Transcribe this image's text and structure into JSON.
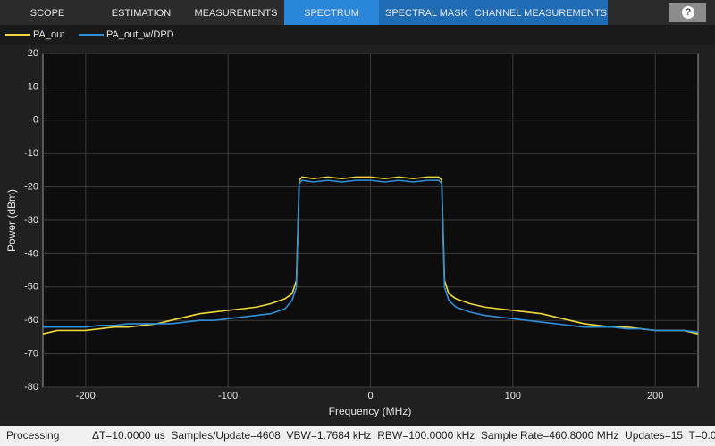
{
  "toolstrip": {
    "tabs": [
      "SCOPE",
      "ESTIMATION",
      "MEASUREMENTS",
      "SPECTRUM",
      "SPECTRAL MASK",
      "CHANNEL MEASUREMENTS"
    ],
    "help_button": "?"
  },
  "status_bar": {
    "state": "Processing",
    "info": "ΔT=10.0000 us  Samples/Update=4608  VBW=1.7684 kHz  RBW=100.0000 kHz  Sample Rate=460.8000 MHz  Updates=15  T=0.0"
  },
  "chart_data": {
    "type": "line",
    "x_label": "Frequency (MHz)",
    "y_label": "Power (dBm)",
    "x": [
      -230,
      -220,
      -210,
      -200,
      -190,
      -180,
      -170,
      -160,
      -150,
      -140,
      -130,
      -120,
      -110,
      -100,
      -90,
      -80,
      -70,
      -60,
      -55,
      -52,
      -50,
      -48,
      -40,
      -30,
      -20,
      -10,
      0,
      10,
      20,
      30,
      40,
      48,
      50,
      52,
      55,
      60,
      70,
      80,
      90,
      100,
      110,
      120,
      130,
      140,
      150,
      160,
      170,
      180,
      190,
      200,
      210,
      220,
      230
    ],
    "series": [
      {
        "name": "PA_out",
        "color": "#f0d83c",
        "values": [
          -64,
          -63,
          -63,
          -63,
          -62.5,
          -62,
          -62,
          -61.5,
          -61,
          -60,
          -59,
          -58,
          -57.5,
          -57,
          -56.5,
          -56,
          -55,
          -53.5,
          -52,
          -48,
          -18,
          -17,
          -17.5,
          -17,
          -17.5,
          -17,
          -17,
          -17.5,
          -17,
          -17.5,
          -17,
          -17,
          -18,
          -48,
          -52,
          -53.5,
          -55,
          -56,
          -56.5,
          -57,
          -57.5,
          -58,
          -59,
          -60,
          -61,
          -61.5,
          -62,
          -62,
          -62.5,
          -63,
          -63,
          -63,
          -64
        ]
      },
      {
        "name": "PA_out_w/DPD",
        "color": "#2f8fd8",
        "values": [
          -62,
          -62,
          -62,
          -62,
          -61.5,
          -61.5,
          -61,
          -61,
          -61,
          -61,
          -60.5,
          -60,
          -60,
          -59.5,
          -59,
          -58.5,
          -58,
          -56.5,
          -54,
          -50,
          -19,
          -18,
          -18.5,
          -18,
          -18.5,
          -18,
          -18,
          -18.5,
          -18,
          -18.5,
          -18,
          -18,
          -19,
          -50,
          -54,
          -56,
          -57.5,
          -58.5,
          -59,
          -59.5,
          -60,
          -60.5,
          -61,
          -61.5,
          -62,
          -62,
          -62,
          -62.5,
          -62.5,
          -63,
          -63,
          -63,
          -63.5
        ]
      }
    ],
    "xlim": [
      -230,
      230
    ],
    "xticks": [
      -200,
      -100,
      0,
      100,
      200
    ],
    "ylim": [
      -80,
      20
    ],
    "yticks": [
      -80,
      -70,
      -60,
      -50,
      -40,
      -30,
      -20,
      -10,
      0,
      10,
      20
    ],
    "grid": true
  }
}
